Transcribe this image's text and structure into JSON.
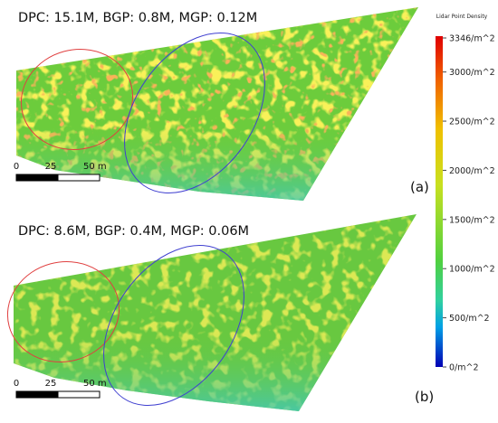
{
  "panels": [
    {
      "caption": "DPC: 15.1M, BGP: 0.8M, MGP: 0.12M",
      "tag": "(a)",
      "scale_labels": [
        "0",
        "25",
        "50 m"
      ]
    },
    {
      "caption": "DPC: 8.6M, BGP: 0.4M, MGP: 0.06M",
      "tag": "(b)",
      "scale_labels": [
        "0",
        "25",
        "50 m"
      ]
    }
  ],
  "colorbar": {
    "title": "Lidar Point Density",
    "lim": [
      0,
      3346
    ],
    "ticks": [
      {
        "value": 3346,
        "label": "3346/m^2"
      },
      {
        "value": 3000,
        "label": "3000/m^2"
      },
      {
        "value": 2500,
        "label": "2500/m^2"
      },
      {
        "value": 2000,
        "label": "2000/m^2"
      },
      {
        "value": 1500,
        "label": "1500/m^2"
      },
      {
        "value": 1000,
        "label": "1000/m^2"
      },
      {
        "value": 500,
        "label": "500/m^2"
      },
      {
        "value": 0,
        "label": "0/m^2"
      }
    ]
  }
}
